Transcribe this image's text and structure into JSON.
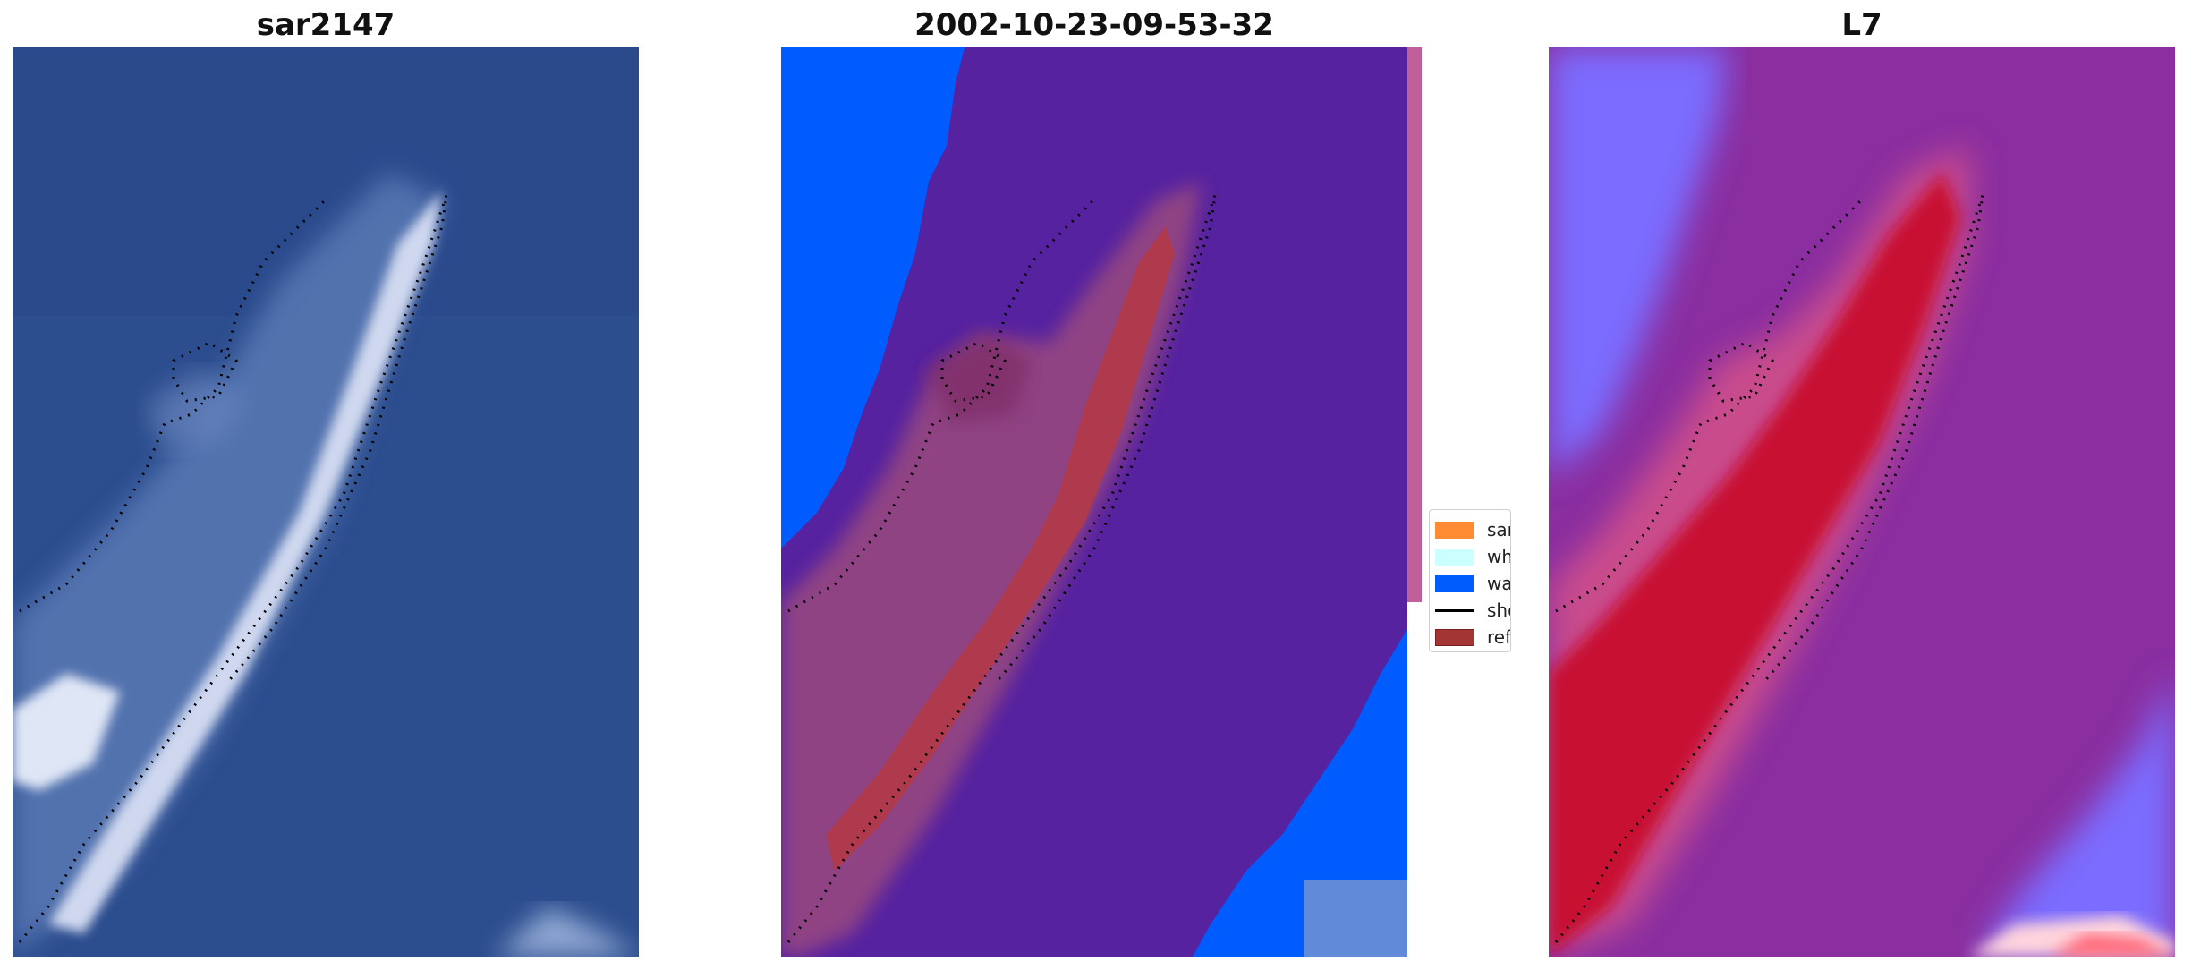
{
  "panels": [
    {
      "title": "sar2147"
    },
    {
      "title": "2002-10-23-09-53-32"
    },
    {
      "title": "L7"
    }
  ],
  "legend": {
    "items": [
      {
        "label": "sand",
        "color": "#ff8c33",
        "kind": "patch"
      },
      {
        "label": "whitewater",
        "color": "#ccffff",
        "kind": "patch"
      },
      {
        "label": "water",
        "color": "#005cff",
        "kind": "patch"
      },
      {
        "label": "shoreline",
        "color": "#000000",
        "kind": "line"
      },
      {
        "label": "reference",
        "color": "#a33535",
        "kind": "patch"
      }
    ]
  },
  "colors": {
    "rgb_water": "#2a4b8c",
    "classified_background": "#5622a0",
    "classified_water": "#005cff",
    "classified_reference": "#b23a48",
    "index_background": "#8a2ea0",
    "index_land": "#c8102e",
    "index_water": "#7b6cff"
  }
}
